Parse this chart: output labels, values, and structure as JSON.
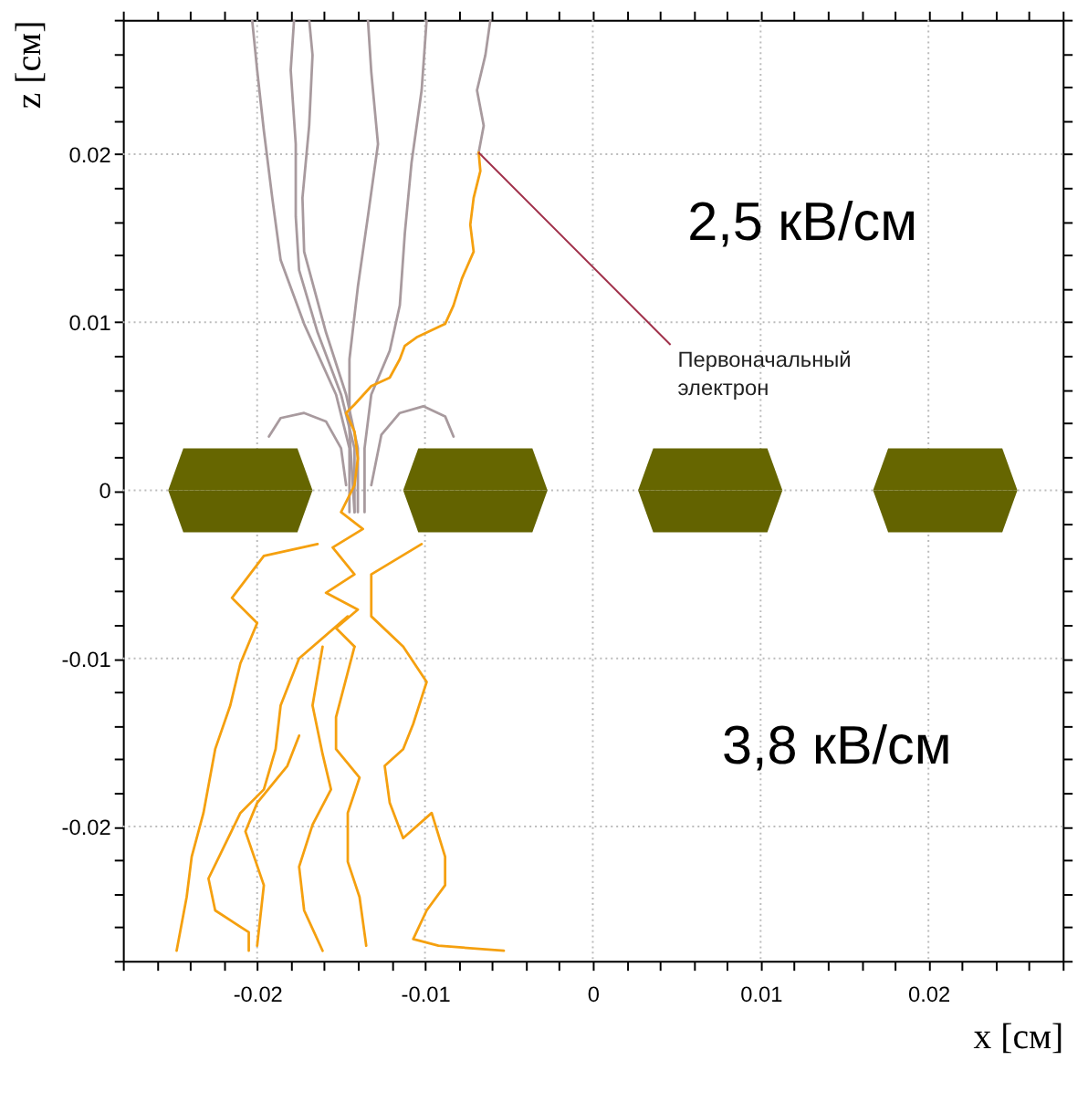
{
  "chart_data": {
    "type": "line",
    "xlabel": "x [см]",
    "ylabel": "z [см]",
    "xlim": [
      -0.028,
      0.028
    ],
    "ylim": [
      -0.028,
      0.028
    ],
    "xticks": [
      {
        "value": -0.028,
        "label": null
      },
      {
        "value": -0.026,
        "label": null
      },
      {
        "value": -0.024,
        "label": null
      },
      {
        "value": -0.022,
        "label": null
      },
      -0.02,
      {
        "value": -0.018,
        "label": null
      },
      {
        "value": -0.016,
        "label": null
      },
      {
        "value": -0.014,
        "label": null
      },
      {
        "value": -0.012,
        "label": null
      },
      -0.01,
      {
        "value": -0.008,
        "label": null
      },
      {
        "value": -0.006,
        "label": null
      },
      {
        "value": -0.004,
        "label": null
      },
      {
        "value": -0.002,
        "label": null
      },
      0,
      {
        "value": 0.002,
        "label": null
      },
      {
        "value": 0.004,
        "label": null
      },
      {
        "value": 0.006,
        "label": null
      },
      {
        "value": 0.008,
        "label": null
      },
      0.01,
      {
        "value": 0.012,
        "label": null
      },
      {
        "value": 0.014,
        "label": null
      },
      {
        "value": 0.016,
        "label": null
      },
      {
        "value": 0.018,
        "label": null
      },
      0.02,
      {
        "value": 0.022,
        "label": null
      },
      {
        "value": 0.024,
        "label": null
      },
      {
        "value": 0.026,
        "label": null
      },
      {
        "value": 0.028,
        "label": null
      }
    ],
    "yticks": [
      {
        "value": -0.028,
        "label": null
      },
      {
        "value": -0.026,
        "label": null
      },
      {
        "value": -0.024,
        "label": null
      },
      {
        "value": -0.022,
        "label": null
      },
      -0.02,
      {
        "value": -0.018,
        "label": null
      },
      {
        "value": -0.016,
        "label": null
      },
      {
        "value": -0.014,
        "label": null
      },
      {
        "value": -0.012,
        "label": null
      },
      -0.01,
      {
        "value": -0.008,
        "label": null
      },
      {
        "value": -0.006,
        "label": null
      },
      {
        "value": -0.004,
        "label": null
      },
      {
        "value": -0.002,
        "label": null
      },
      0,
      {
        "value": 0.002,
        "label": null
      },
      {
        "value": 0.004,
        "label": null
      },
      {
        "value": 0.006,
        "label": null
      },
      {
        "value": 0.008,
        "label": null
      },
      0.01,
      {
        "value": 0.012,
        "label": null
      },
      {
        "value": 0.014,
        "label": null
      },
      {
        "value": 0.016,
        "label": null
      },
      {
        "value": 0.018,
        "label": null
      },
      0.02,
      {
        "value": 0.022,
        "label": null
      },
      {
        "value": 0.024,
        "label": null
      },
      {
        "value": 0.026,
        "label": null
      },
      {
        "value": 0.028,
        "label": null
      }
    ],
    "grid": true,
    "annotations": [
      {
        "text": "Первоначальный электрон",
        "x": -0.0068,
        "y": 0.0201
      },
      "2,5 кВ/см",
      "3,8 кВ/см"
    ],
    "series": [
      {
        "type": "area",
        "color": "#666600",
        "x": [
          -0.0253,
          -0.0244,
          -0.0176,
          -0.0167
        ],
        "values": [
          0,
          0.0025,
          0.0025,
          0
        ]
      },
      {
        "type": "area",
        "color": "#636300",
        "x": [
          -0.0253,
          -0.0244,
          -0.0176,
          -0.0167
        ],
        "values": [
          0,
          -0.0025,
          -0.0025,
          0
        ]
      },
      {
        "type": "area",
        "color": "#666600",
        "x": [
          -0.0113,
          -0.0104,
          -0.0036,
          -0.0027
        ],
        "values": [
          0,
          0.0025,
          0.0025,
          0
        ]
      },
      {
        "type": "area",
        "color": "#636300",
        "x": [
          -0.0113,
          -0.0104,
          -0.0036,
          -0.0027
        ],
        "values": [
          0,
          -0.0025,
          -0.0025,
          0
        ]
      },
      {
        "type": "area",
        "color": "#666600",
        "x": [
          0.0027,
          0.0036,
          0.0104,
          0.0113
        ],
        "values": [
          0,
          0.0025,
          0.0025,
          0
        ]
      },
      {
        "type": "area",
        "color": "#636300",
        "x": [
          0.0027,
          0.0036,
          0.0104,
          0.0113
        ],
        "values": [
          0,
          -0.0025,
          -0.0025,
          0
        ]
      },
      {
        "type": "area",
        "color": "#666600",
        "x": [
          0.0167,
          0.0176,
          0.0244,
          0.0253
        ],
        "values": [
          0,
          0.0025,
          0.0025,
          0
        ]
      },
      {
        "type": "area",
        "color": "#636300",
        "x": [
          0.0167,
          0.0176,
          0.0244,
          0.0253
        ],
        "values": [
          0,
          -0.0025,
          -0.0025,
          0
        ]
      },
      {
        "color": "#a89a9e",
        "x": [
          -0.0203,
          -0.02,
          -0.0196,
          -0.0191,
          -0.0186,
          -0.0172,
          -0.0153,
          -0.0145,
          -0.0145
        ],
        "values": [
          0.028,
          0.025,
          0.0214,
          0.0174,
          0.0137,
          0.0099,
          0.0057,
          0.0025,
          -0.0013
        ]
      },
      {
        "color": "#a89a9e",
        "x": [
          -0.0178,
          -0.018,
          -0.0177,
          -0.0177,
          -0.0175,
          -0.0164,
          -0.015,
          -0.0142,
          -0.0142
        ],
        "values": [
          0.028,
          0.025,
          0.0206,
          0.0163,
          0.0131,
          0.0094,
          0.0057,
          0.0025,
          -0.0013
        ]
      },
      {
        "color": "#a89a9e",
        "x": [
          -0.0169,
          -0.0167,
          -0.0169,
          -0.0173,
          -0.0172,
          -0.0159,
          -0.0147,
          -0.014,
          -0.014
        ],
        "values": [
          0.028,
          0.0259,
          0.0217,
          0.0174,
          0.0142,
          0.0094,
          0.0057,
          0.0025,
          -0.0013
        ]
      },
      {
        "color": "#a89a9e",
        "x": [
          -0.0134,
          -0.0132,
          -0.0128,
          -0.0134,
          -0.014,
          -0.0145,
          -0.0145,
          -0.0142
        ],
        "values": [
          0.028,
          0.0249,
          0.0206,
          0.0163,
          0.0121,
          0.0078,
          0.0035,
          -0.0013
        ]
      },
      {
        "color": "#a89a9e",
        "x": [
          -0.0099,
          -0.0102,
          -0.0108,
          -0.0112,
          -0.0115,
          -0.0121,
          -0.0132,
          -0.0136,
          -0.0136
        ],
        "values": [
          0.028,
          0.0238,
          0.0195,
          0.0153,
          0.011,
          0.0083,
          0.0057,
          0.0025,
          -0.0013
        ]
      },
      {
        "color": "#a89a9e",
        "x": [
          -0.0068,
          -0.0065,
          -0.0069,
          -0.0064,
          -0.0061
        ],
        "values": [
          0.0201,
          0.0217,
          0.0238,
          0.0259,
          0.028
        ]
      },
      {
        "color": "#a89a9e",
        "x": [
          -0.0193,
          -0.0186,
          -0.0172,
          -0.0159,
          -0.015,
          -0.0147
        ],
        "values": [
          0.0032,
          0.0043,
          0.0046,
          0.0041,
          0.0025,
          0.0003
        ]
      },
      {
        "color": "#a89a9e",
        "x": [
          -0.0083,
          -0.0088,
          -0.0101,
          -0.0115,
          -0.0126,
          -0.0132
        ],
        "values": [
          0.0032,
          0.0044,
          0.005,
          0.0046,
          0.0033,
          0.0003
        ]
      },
      {
        "color": "#f5a00f",
        "x": [
          -0.0068,
          -0.0067,
          -0.0071,
          -0.0073,
          -0.0071,
          -0.0078,
          -0.0083,
          -0.0088,
          -0.0105,
          -0.0112,
          -0.0115,
          -0.0121,
          -0.0132,
          -0.0142,
          -0.0147,
          -0.0142,
          -0.014,
          -0.0142,
          -0.015,
          -0.0137,
          -0.0155,
          -0.0142,
          -0.0159,
          -0.014,
          -0.0153,
          -0.0142
        ],
        "values": [
          0.0201,
          0.019,
          0.0174,
          0.0158,
          0.0142,
          0.0126,
          0.011,
          0.0099,
          0.0091,
          0.0086,
          0.0078,
          0.0067,
          0.0062,
          0.0051,
          0.0046,
          0.0035,
          0.0019,
          0.0003,
          -0.0013,
          -0.0023,
          -0.0034,
          -0.005,
          -0.0061,
          -0.0071,
          -0.0082,
          -0.0093
        ]
      },
      {
        "color": "#f5a00f",
        "x": [
          -0.0164,
          -0.0196,
          -0.0215,
          -0.02,
          -0.021,
          -0.0216,
          -0.0225,
          -0.0232,
          -0.0239,
          -0.0242,
          -0.0248
        ],
        "values": [
          -0.0032,
          -0.0039,
          -0.0064,
          -0.0079,
          -0.0103,
          -0.0128,
          -0.0154,
          -0.0192,
          -0.0218,
          -0.0242,
          -0.0274
        ]
      },
      {
        "color": "#f5a00f",
        "x": [
          -0.0146,
          -0.0175,
          -0.0186,
          -0.0189,
          -0.0196,
          -0.021,
          -0.0229,
          -0.0225,
          -0.0205,
          -0.0205
        ],
        "values": [
          -0.0075,
          -0.01,
          -0.0128,
          -0.0154,
          -0.0178,
          -0.0192,
          -0.0231,
          -0.025,
          -0.0263,
          -0.0274
        ]
      },
      {
        "color": "#f5a00f",
        "x": [
          -0.0161,
          -0.0167,
          -0.0161,
          -0.0156,
          -0.0167,
          -0.0175,
          -0.0172,
          -0.0161
        ],
        "values": [
          -0.0093,
          -0.0128,
          -0.0157,
          -0.0178,
          -0.0199,
          -0.0224,
          -0.025,
          -0.0274
        ]
      },
      {
        "color": "#f5a00f",
        "x": [
          -0.0142,
          -0.0153,
          -0.0153,
          -0.0139,
          -0.0146,
          -0.0146,
          -0.0139,
          -0.0135
        ],
        "values": [
          -0.0093,
          -0.0135,
          -0.0154,
          -0.0171,
          -0.0192,
          -0.0221,
          -0.0242,
          -0.0271
        ]
      },
      {
        "color": "#f5a00f",
        "x": [
          -0.0102,
          -0.0132,
          -0.0132,
          -0.0113,
          -0.0099,
          -0.0107,
          -0.0113,
          -0.0124,
          -0.0121,
          -0.0113,
          -0.0096,
          -0.0088,
          -0.0088,
          -0.0099,
          -0.0107,
          -0.0092,
          -0.0053
        ],
        "values": [
          -0.0032,
          -0.005,
          -0.0075,
          -0.0093,
          -0.0114,
          -0.0139,
          -0.0154,
          -0.0164,
          -0.0186,
          -0.0207,
          -0.0192,
          -0.0218,
          -0.0235,
          -0.025,
          -0.0267,
          -0.0271,
          -0.0274
        ]
      },
      {
        "color": "#f5a00f",
        "x": [
          -0.0175,
          -0.0182,
          -0.02,
          -0.0207,
          -0.0196,
          -0.02
        ],
        "values": [
          -0.0146,
          -0.0164,
          -0.0186,
          -0.0203,
          -0.0235,
          -0.0271
        ]
      }
    ]
  }
}
